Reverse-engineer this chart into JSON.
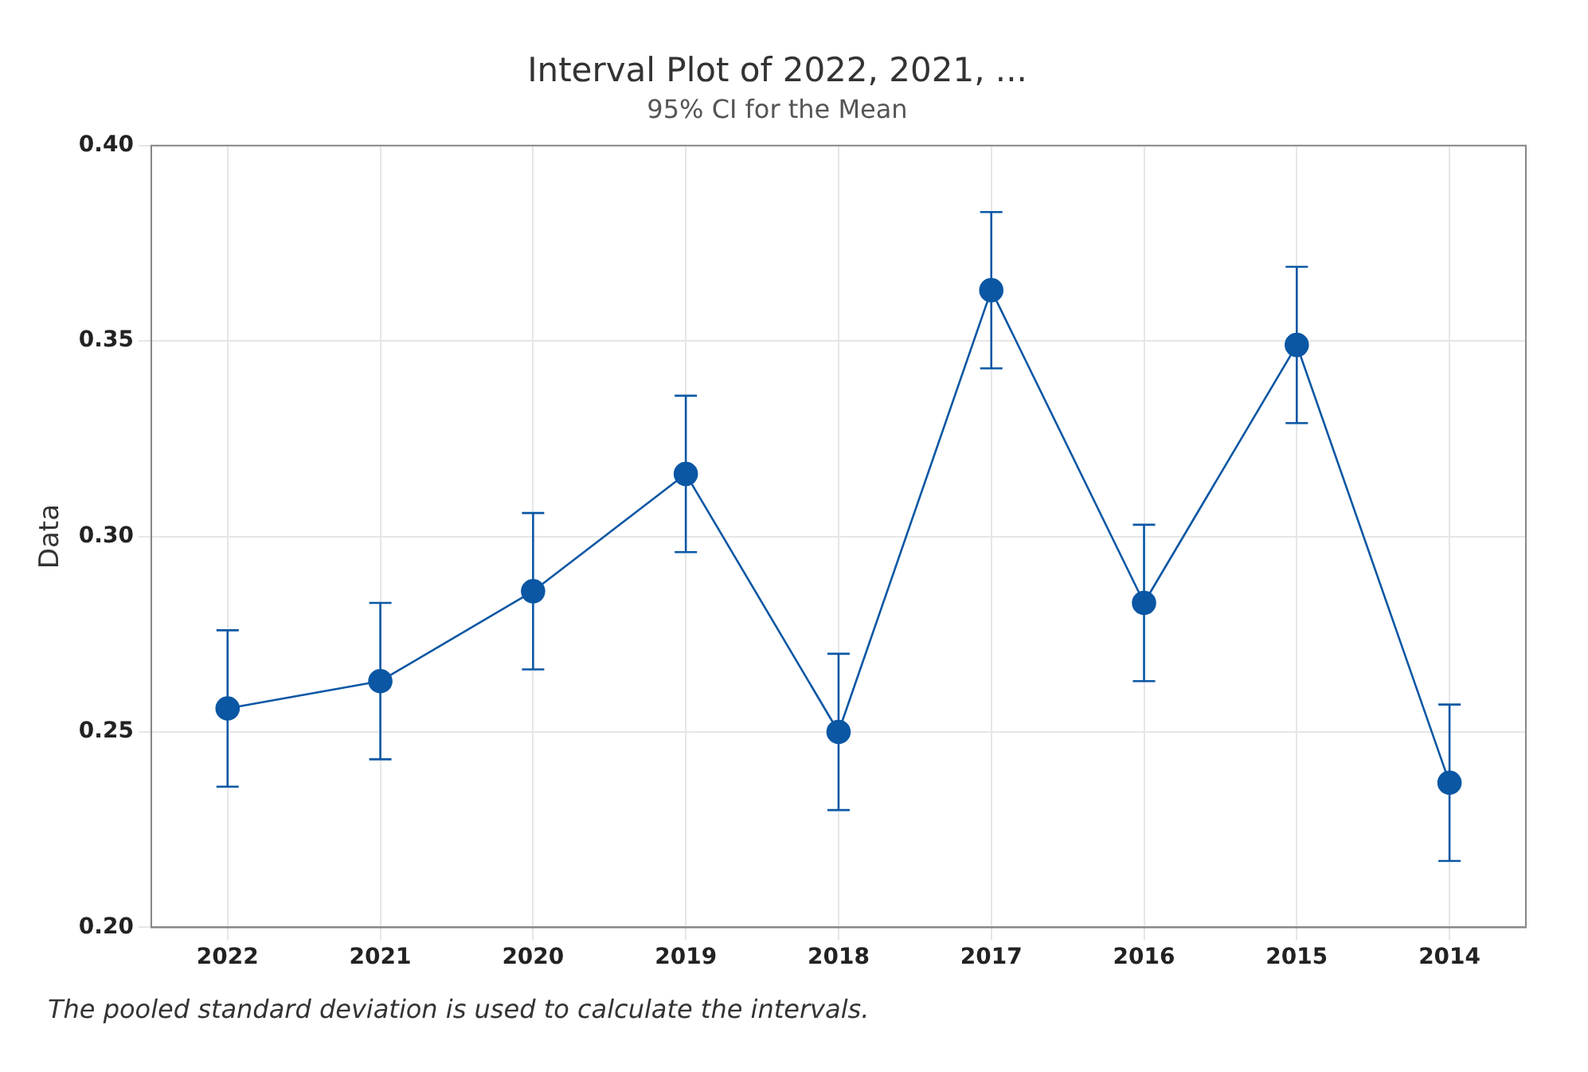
{
  "chart_data": {
    "type": "line",
    "title": "Interval Plot of 2022, 2021, ...",
    "subtitle": "95% CI for the Mean",
    "ylabel": "Data",
    "annotations": [
      "The pooled standard deviation is used to calculate the intervals."
    ],
    "categories": [
      "2022",
      "2021",
      "2020",
      "2019",
      "2018",
      "2017",
      "2016",
      "2015",
      "2014"
    ],
    "series": [
      {
        "color": "#0b57a4",
        "values": [
          0.256,
          0.263,
          0.286,
          0.316,
          0.25,
          0.363,
          0.283,
          0.349,
          0.237
        ],
        "errors": [
          0.02,
          0.02,
          0.02,
          0.02,
          0.02,
          0.02,
          0.02,
          0.02,
          0.02
        ]
      }
    ],
    "ylim": [
      0.2,
      0.4
    ],
    "yticks": [
      {
        "value": 0.2,
        "label": "0.20"
      },
      {
        "value": 0.25,
        "label": "0.25"
      },
      {
        "value": 0.3,
        "label": "0.30"
      },
      {
        "value": 0.35,
        "label": "0.35"
      },
      {
        "value": 0.4,
        "label": "0.40"
      }
    ],
    "grid": true,
    "legend": false,
    "marker": "circle",
    "line_style": "solid"
  }
}
